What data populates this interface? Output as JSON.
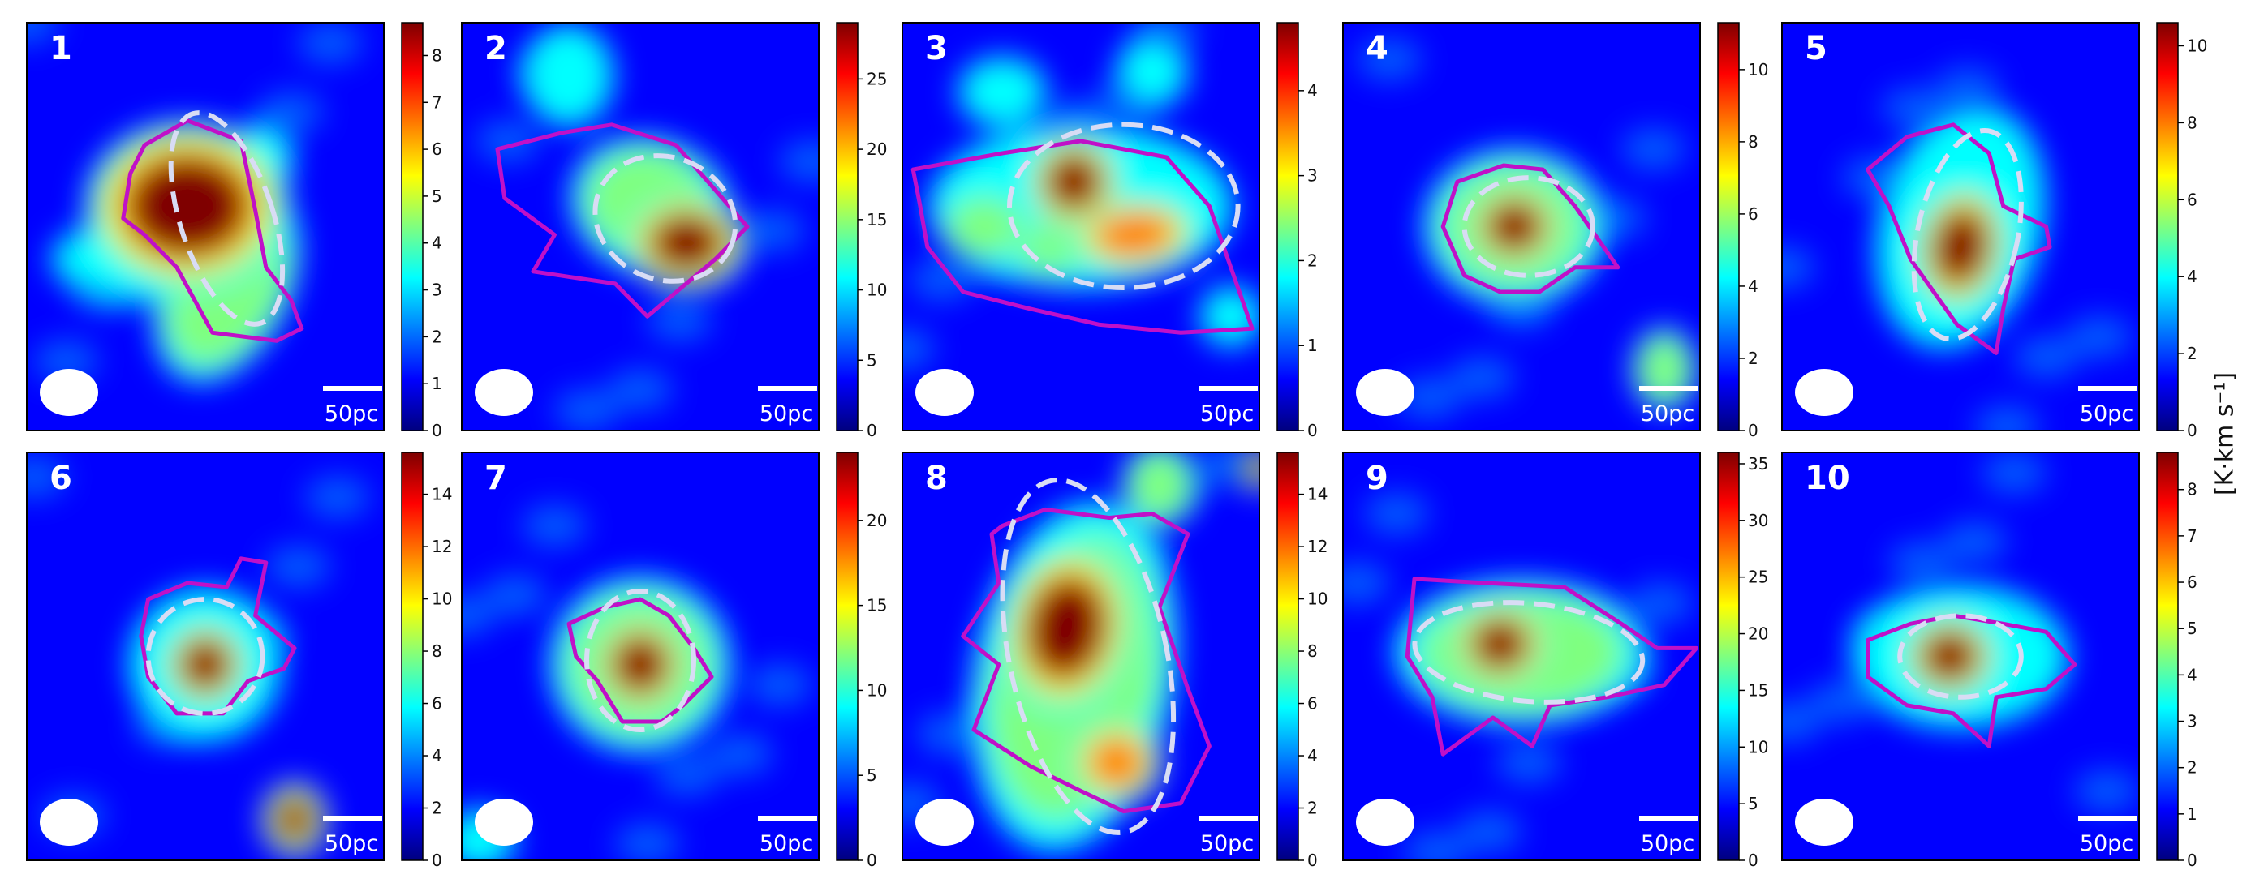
{
  "figure": {
    "unit_label": "[K·km s⁻¹]",
    "colormap": [
      "#00007f",
      "#0000ff",
      "#007fff",
      "#00ffff",
      "#7fff7f",
      "#ffff00",
      "#ff7f00",
      "#ff0000",
      "#7f0000"
    ],
    "contour_color": "#c010c8",
    "ellipse_color": "#d8dcf4",
    "beam_color": "#ffffff",
    "scalebar_label": "50pc"
  },
  "chart_data": [
    {
      "type": "heatmap",
      "panel": "1",
      "colorbar_range": [
        0,
        8.7
      ],
      "colorbar_ticks": [
        "0",
        "1",
        "2",
        "3",
        "4",
        "5",
        "6",
        "7",
        "8"
      ],
      "scale_bar": "50pc",
      "peak_intensity": 8.7
    },
    {
      "type": "heatmap",
      "panel": "2",
      "colorbar_range": [
        0,
        29
      ],
      "colorbar_ticks": [
        "0",
        "5",
        "10",
        "15",
        "20",
        "25"
      ],
      "scale_bar": "50pc",
      "peak_intensity": 29
    },
    {
      "type": "heatmap",
      "panel": "3",
      "colorbar_range": [
        0,
        4.8
      ],
      "colorbar_ticks": [
        "0",
        "1",
        "2",
        "3",
        "4"
      ],
      "scale_bar": "50pc",
      "peak_intensity": 4.8
    },
    {
      "type": "heatmap",
      "panel": "4",
      "colorbar_range": [
        0,
        11.3
      ],
      "colorbar_ticks": [
        "0",
        "2",
        "4",
        "6",
        "8",
        "10"
      ],
      "scale_bar": "50pc",
      "peak_intensity": 11.3
    },
    {
      "type": "heatmap",
      "panel": "5",
      "colorbar_range": [
        0,
        10.6
      ],
      "colorbar_ticks": [
        "0",
        "2",
        "4",
        "6",
        "8",
        "10"
      ],
      "scale_bar": "50pc",
      "peak_intensity": 10.6
    },
    {
      "type": "heatmap",
      "panel": "6",
      "colorbar_range": [
        0,
        15.6
      ],
      "colorbar_ticks": [
        "0",
        "2",
        "4",
        "6",
        "8",
        "10",
        "12",
        "14"
      ],
      "scale_bar": "50pc",
      "peak_intensity": 15.6
    },
    {
      "type": "heatmap",
      "panel": "7",
      "colorbar_range": [
        0,
        24
      ],
      "colorbar_ticks": [
        "0",
        "5",
        "10",
        "15",
        "20"
      ],
      "scale_bar": "50pc",
      "peak_intensity": 24
    },
    {
      "type": "heatmap",
      "panel": "8",
      "colorbar_range": [
        0,
        15.6
      ],
      "colorbar_ticks": [
        "0",
        "2",
        "4",
        "6",
        "8",
        "10",
        "12",
        "14"
      ],
      "scale_bar": "50pc",
      "peak_intensity": 15.6
    },
    {
      "type": "heatmap",
      "panel": "9",
      "colorbar_range": [
        0,
        36
      ],
      "colorbar_ticks": [
        "0",
        "5",
        "10",
        "15",
        "20",
        "25",
        "30",
        "35"
      ],
      "scale_bar": "50pc",
      "peak_intensity": 36
    },
    {
      "type": "heatmap",
      "panel": "10",
      "colorbar_range": [
        0,
        8.8
      ],
      "colorbar_ticks": [
        "0",
        "1",
        "2",
        "3",
        "4",
        "5",
        "6",
        "7",
        "8"
      ],
      "scale_bar": "50pc",
      "peak_intensity": 8.8
    }
  ]
}
